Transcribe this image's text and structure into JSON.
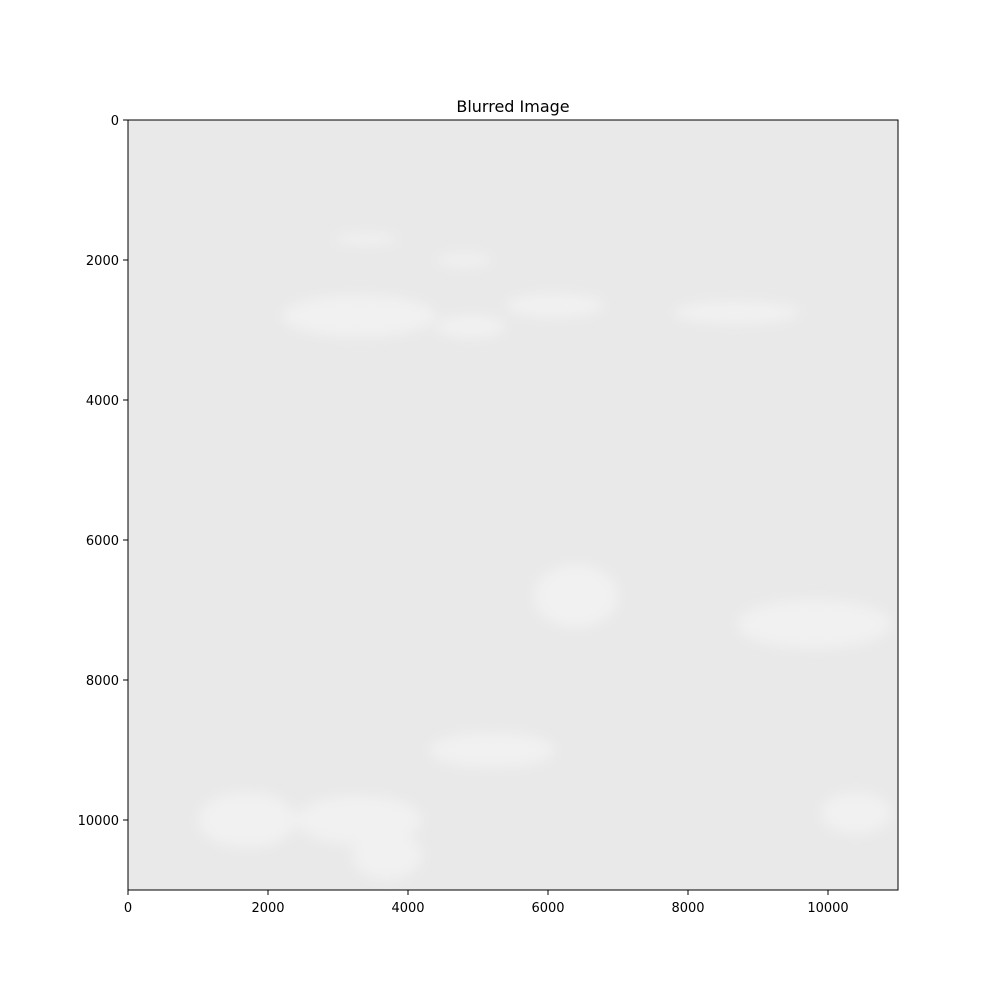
{
  "chart_data": {
    "type": "heatmap",
    "title": "Blurred Image",
    "xlabel": "",
    "ylabel": "",
    "xlim": [
      0,
      11000
    ],
    "ylim": [
      11000,
      0
    ],
    "y_inverted": true,
    "grid": false,
    "xticks": [
      0,
      2000,
      4000,
      6000,
      8000,
      10000
    ],
    "xtick_labels": [
      "0",
      "2000",
      "4000",
      "6000",
      "8000",
      "10000"
    ],
    "yticks": [
      0,
      2000,
      4000,
      6000,
      8000,
      10000
    ],
    "ytick_labels": [
      "0",
      "2000",
      "4000",
      "6000",
      "8000",
      "10000"
    ],
    "colors": {
      "image_background": "#e9e9e9",
      "bright_patch": "#f1f1f1",
      "axes_frame": "#000000"
    },
    "bright_patches": [
      {
        "x": 3300,
        "y": 2800,
        "rx": 1100,
        "ry": 300
      },
      {
        "x": 4900,
        "y": 2950,
        "rx": 500,
        "ry": 160
      },
      {
        "x": 3400,
        "y": 1700,
        "rx": 450,
        "ry": 80
      },
      {
        "x": 4800,
        "y": 2000,
        "rx": 400,
        "ry": 90
      },
      {
        "x": 6100,
        "y": 2650,
        "rx": 700,
        "ry": 170
      },
      {
        "x": 8700,
        "y": 2750,
        "rx": 900,
        "ry": 160
      },
      {
        "x": 6400,
        "y": 6800,
        "rx": 600,
        "ry": 450
      },
      {
        "x": 9800,
        "y": 7200,
        "rx": 1100,
        "ry": 350
      },
      {
        "x": 3300,
        "y": 10000,
        "rx": 900,
        "ry": 350
      },
      {
        "x": 1700,
        "y": 10000,
        "rx": 700,
        "ry": 400
      },
      {
        "x": 3700,
        "y": 10500,
        "rx": 500,
        "ry": 350
      },
      {
        "x": 5200,
        "y": 9000,
        "rx": 900,
        "ry": 250
      },
      {
        "x": 10400,
        "y": 9900,
        "rx": 500,
        "ry": 300
      }
    ]
  }
}
